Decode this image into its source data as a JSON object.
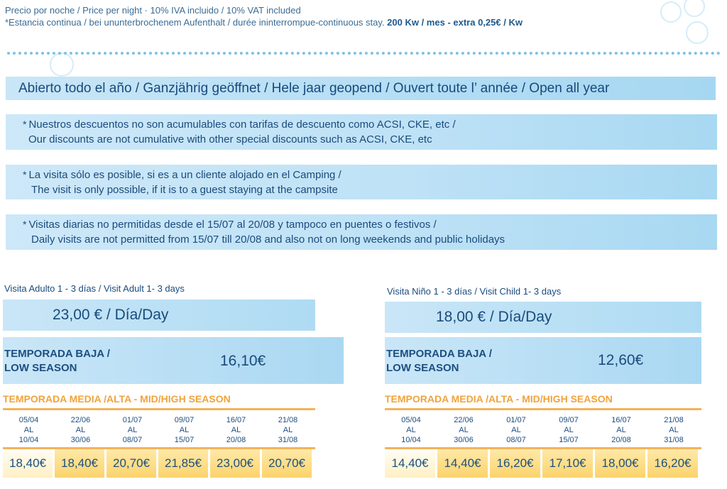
{
  "header": {
    "line1": "Precio por noche / Price per night  · 10% IVA incluido / 10% VAT included",
    "line2": "*Estancia continua / bei ununterbrochenem Aufenthalt  / durée ininterrompue-continuous stay.",
    "line2_bold": "200 Kw / mes - extra 0,25€ / Kw"
  },
  "banner": "Abierto todo el año  / Ganzjährig geöffnet / Hele jaar geopend / Ouvert toute l’ année / Open all year",
  "notes": [
    {
      "star": "*",
      "es": "Nuestros descuentos no son acumulables con tarifas de descuento como ACSI, CKE, etc /",
      "en": "Our discounts are not cumulative with other special discounts such as ACSI, CKE, etc"
    },
    {
      "star": "*",
      "es": "La visita sólo es posible, si es a un cliente alojado en el  Camping /",
      "en": "The visit is only possible, if it is to a guest staying at  the campsite"
    },
    {
      "star": "*",
      "es": "Visitas diarias no permitidas desde el 15/07 al 20/08 y tampoco en puentes o festivos /",
      "en": "Daily visits are not permitted from 15/07 till 20/08 and also not on long weekends and public holidays"
    }
  ],
  "adult": {
    "title": "Visita Adulto 1 - 3 días / Visit Adult 1- 3 days",
    "price": "23,00 € / Día/Day",
    "low_label_1": "TEMPORADA BAJA /",
    "low_label_2": "LOW SEASON",
    "low_price": "16,10€",
    "mid_title": "TEMPORADA MEDIA /ALTA - MID/HIGH SEASON",
    "periods": [
      {
        "from": "05/04",
        "al": "AL",
        "to": "10/04",
        "price": "18,40€"
      },
      {
        "from": "22/06",
        "al": "AL",
        "to": "30/06",
        "price": "18,40€"
      },
      {
        "from": "01/07",
        "al": "AL",
        "to": "08/07",
        "price": "20,70€"
      },
      {
        "from": "09/07",
        "al": "AL",
        "to": "15/07",
        "price": "21,85€"
      },
      {
        "from": "16/07",
        "al": "AL",
        "to": "20/08",
        "price": "23,00€"
      },
      {
        "from": "21/08",
        "al": "AL",
        "to": "31/08",
        "price": "20,70€"
      }
    ]
  },
  "child": {
    "title": "Visita Niño 1 - 3 días / Visit Child 1- 3 days",
    "price": "18,00 € / Día/Day",
    "low_label_1": "TEMPORADA BAJA /",
    "low_label_2": "LOW SEASON",
    "low_price": "12,60€",
    "mid_title": "TEMPORADA MEDIA /ALTA - MID/HIGH SEASON",
    "periods": [
      {
        "from": "05/04",
        "al": "AL",
        "to": "10/04",
        "price": "14,40€"
      },
      {
        "from": "22/06",
        "al": "AL",
        "to": "30/06",
        "price": "14,40€"
      },
      {
        "from": "01/07",
        "al": "AL",
        "to": "08/07",
        "price": "16,20€"
      },
      {
        "from": "09/07",
        "al": "AL",
        "to": "15/07",
        "price": "17,10€"
      },
      {
        "from": "16/07",
        "al": "AL",
        "to": "20/08",
        "price": "18,00€"
      },
      {
        "from": "21/08",
        "al": "AL",
        "to": "31/08",
        "price": "16,20€"
      }
    ]
  }
}
